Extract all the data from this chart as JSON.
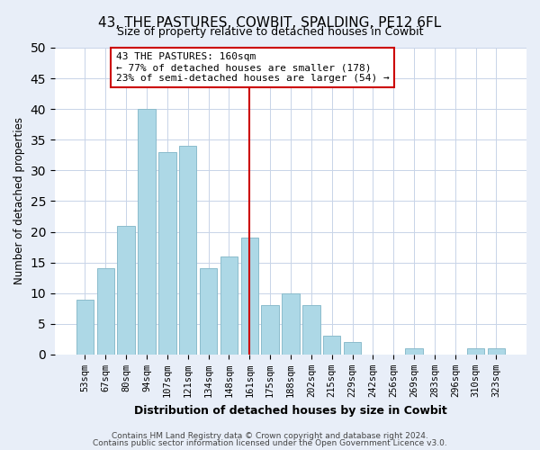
{
  "title": "43, THE PASTURES, COWBIT, SPALDING, PE12 6FL",
  "subtitle": "Size of property relative to detached houses in Cowbit",
  "xlabel": "Distribution of detached houses by size in Cowbit",
  "ylabel": "Number of detached properties",
  "bar_labels": [
    "53sqm",
    "67sqm",
    "80sqm",
    "94sqm",
    "107sqm",
    "121sqm",
    "134sqm",
    "148sqm",
    "161sqm",
    "175sqm",
    "188sqm",
    "202sqm",
    "215sqm",
    "229sqm",
    "242sqm",
    "256sqm",
    "269sqm",
    "283sqm",
    "296sqm",
    "310sqm",
    "323sqm"
  ],
  "bar_heights": [
    9,
    14,
    21,
    40,
    33,
    34,
    14,
    16,
    19,
    8,
    10,
    8,
    3,
    2,
    0,
    0,
    1,
    0,
    0,
    1,
    1
  ],
  "bar_color": "#add8e6",
  "bar_edge_color": "#8bbccc",
  "vline_x": 8,
  "vline_color": "#cc0000",
  "ylim": [
    0,
    50
  ],
  "yticks": [
    0,
    5,
    10,
    15,
    20,
    25,
    30,
    35,
    40,
    45,
    50
  ],
  "annotation_text": "43 THE PASTURES: 160sqm\n← 77% of detached houses are smaller (178)\n23% of semi-detached houses are larger (54) →",
  "annotation_box_color": "#ffffff",
  "annotation_box_edge_color": "#cc0000",
  "footer_line1": "Contains HM Land Registry data © Crown copyright and database right 2024.",
  "footer_line2": "Contains public sector information licensed under the Open Government Licence v3.0.",
  "background_color": "#e8eef8",
  "plot_background_color": "#ffffff",
  "grid_color": "#c8d4e8"
}
